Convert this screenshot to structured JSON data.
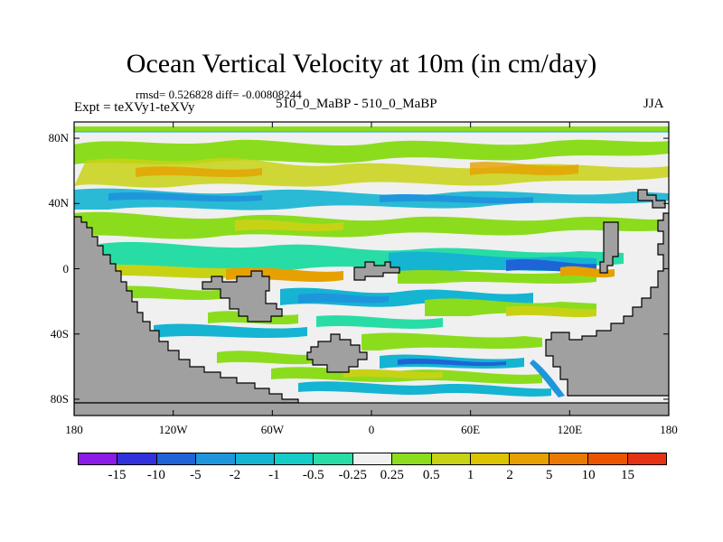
{
  "header": {
    "title": "Ocean Vertical Velocity at 10m (in cm/day)",
    "stats": "rmsd= 0.526828 diff= -0.00808244",
    "experiment": "Expt = teXVy1-teXVy",
    "case": "510_0_MaBP - 510_0_MaBP",
    "season": "JJA"
  },
  "axes": {
    "lat_labels": [
      "80N",
      "40N",
      "0",
      "40S",
      "80S"
    ],
    "lat_values": [
      80,
      40,
      0,
      -40,
      -80
    ],
    "lon_labels": [
      "180",
      "120W",
      "60W",
      "0",
      "60E",
      "120E",
      "180"
    ],
    "lon_values": [
      -180,
      -120,
      -60,
      0,
      60,
      120,
      180
    ]
  },
  "colorbar": {
    "labels": [
      "-15",
      "-10",
      "-5",
      "-2",
      "-1",
      "-0.5",
      "-0.25",
      "0.25",
      "0.5",
      "1",
      "2",
      "5",
      "10",
      "15"
    ],
    "colors": [
      "#8a1ce6",
      "#3232dc",
      "#1e64d7",
      "#1e96dc",
      "#14b4d2",
      "#14cdc8",
      "#28dca5",
      "#f0f0f0",
      "#8cdc1e",
      "#c8d214",
      "#dcc300",
      "#e6a000",
      "#eb7800",
      "#eb5500",
      "#e63214"
    ]
  },
  "map_colors": {
    "land": "#a0a0a0",
    "background": "#f0f0f0"
  }
}
